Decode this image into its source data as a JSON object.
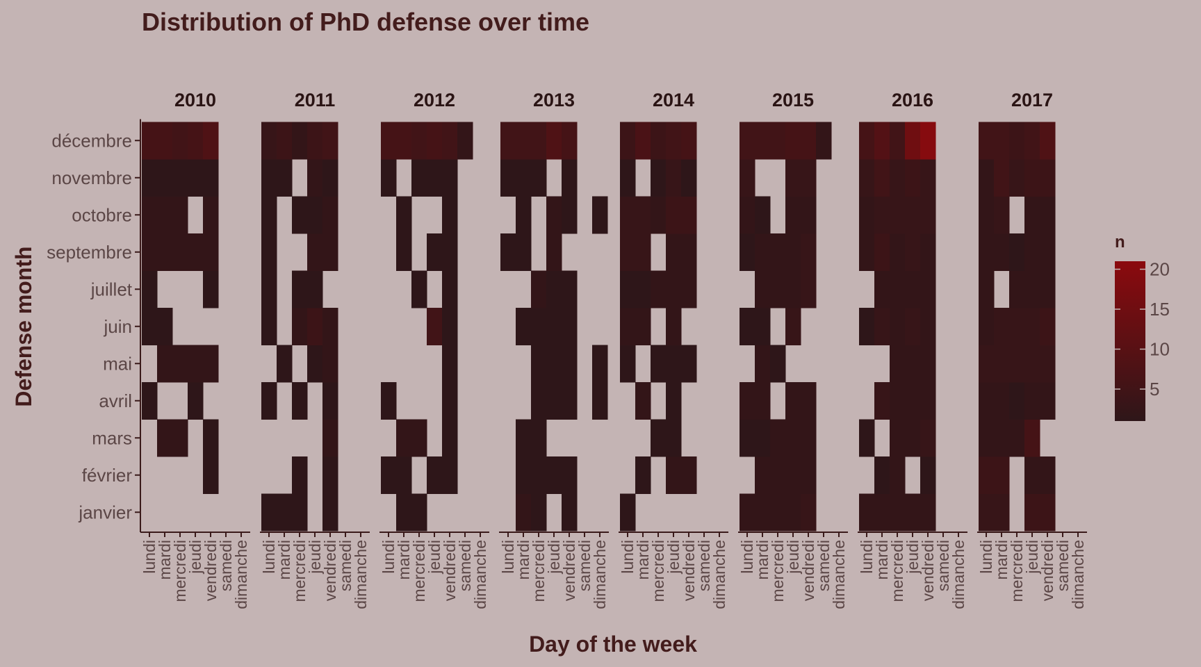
{
  "chart_data": {
    "type": "heatmap",
    "title": "Distribution of PhD defense over time",
    "xlabel": "Day of the week",
    "ylabel": "Defense month",
    "facets": [
      "2010",
      "2011",
      "2012",
      "2013",
      "2014",
      "2015",
      "2016",
      "2017"
    ],
    "days": [
      "lundi",
      "mardi",
      "mercredi",
      "jeudi",
      "vendredi",
      "samedi",
      "dimanche"
    ],
    "months": [
      "janvier",
      "février",
      "mars",
      "avril",
      "mai",
      "juin",
      "juillet",
      "septembre",
      "octobre",
      "novembre",
      "décembre"
    ],
    "legend": {
      "title": "n",
      "ticks": [
        5,
        10,
        15,
        20
      ],
      "min": 1,
      "max": 21,
      "position": "right"
    },
    "colors": {
      "low": "#2e1619",
      "high": "#8b0a0e",
      "background": "#c4b4b4",
      "text": "#431c1c"
    },
    "grid": false,
    "values": {
      "2010": [
        [
          0,
          0,
          0,
          0,
          0,
          0,
          0
        ],
        [
          0,
          0,
          0,
          0,
          1,
          0,
          0
        ],
        [
          0,
          2,
          2,
          0,
          1,
          0,
          0
        ],
        [
          1,
          0,
          0,
          1,
          0,
          0,
          0
        ],
        [
          0,
          2,
          2,
          2,
          2,
          0,
          0
        ],
        [
          1,
          1,
          0,
          0,
          0,
          0,
          0
        ],
        [
          1,
          0,
          0,
          0,
          1,
          0,
          0
        ],
        [
          2,
          2,
          2,
          2,
          2,
          0,
          0
        ],
        [
          2,
          2,
          2,
          0,
          2,
          0,
          0
        ],
        [
          1,
          1,
          1,
          1,
          1,
          0,
          0
        ],
        [
          6,
          6,
          5,
          6,
          8,
          0,
          0
        ]
      ],
      "2011": [
        [
          1,
          1,
          1,
          0,
          1,
          0,
          0
        ],
        [
          0,
          0,
          1,
          0,
          1,
          0,
          0
        ],
        [
          0,
          0,
          0,
          0,
          2,
          0,
          0
        ],
        [
          1,
          0,
          1,
          0,
          1,
          0,
          0
        ],
        [
          0,
          1,
          0,
          1,
          2,
          0,
          0
        ],
        [
          1,
          0,
          2,
          4,
          2,
          0,
          0
        ],
        [
          1,
          0,
          1,
          1,
          0,
          0,
          0
        ],
        [
          1,
          0,
          0,
          2,
          2,
          0,
          0
        ],
        [
          1,
          0,
          1,
          1,
          2,
          0,
          0
        ],
        [
          1,
          1,
          0,
          2,
          1,
          0,
          0
        ],
        [
          3,
          4,
          2,
          4,
          5,
          0,
          0
        ]
      ],
      "2012": [
        [
          0,
          1,
          1,
          0,
          0,
          0,
          0
        ],
        [
          1,
          1,
          0,
          1,
          1,
          0,
          0
        ],
        [
          0,
          2,
          2,
          0,
          1,
          0,
          0
        ],
        [
          1,
          0,
          0,
          0,
          1,
          0,
          0
        ],
        [
          0,
          0,
          0,
          0,
          1,
          0,
          0
        ],
        [
          0,
          0,
          0,
          5,
          1,
          0,
          0
        ],
        [
          0,
          0,
          1,
          0,
          1,
          0,
          0
        ],
        [
          0,
          1,
          0,
          1,
          1,
          0,
          0
        ],
        [
          0,
          1,
          0,
          0,
          1,
          0,
          0
        ],
        [
          1,
          0,
          1,
          1,
          1,
          0,
          0
        ],
        [
          6,
          6,
          5,
          6,
          5,
          2,
          0
        ]
      ],
      "2013": [
        [
          0,
          2,
          1,
          0,
          1,
          0,
          0
        ],
        [
          0,
          1,
          1,
          1,
          1,
          0,
          0
        ],
        [
          0,
          1,
          1,
          0,
          0,
          0,
          0
        ],
        [
          0,
          0,
          1,
          1,
          1,
          0,
          1
        ],
        [
          0,
          0,
          1,
          1,
          1,
          0,
          1
        ],
        [
          0,
          1,
          1,
          1,
          1,
          0,
          0
        ],
        [
          0,
          0,
          2,
          1,
          1,
          0,
          0
        ],
        [
          1,
          1,
          0,
          2,
          0,
          0,
          0
        ],
        [
          0,
          1,
          0,
          2,
          1,
          0,
          1
        ],
        [
          1,
          1,
          1,
          0,
          1,
          0,
          0
        ],
        [
          5,
          5,
          5,
          8,
          6,
          0,
          0
        ]
      ],
      "2014": [
        [
          1,
          0,
          0,
          0,
          0,
          0,
          0
        ],
        [
          0,
          1,
          0,
          2,
          2,
          0,
          0
        ],
        [
          0,
          0,
          1,
          1,
          0,
          0,
          0
        ],
        [
          0,
          2,
          0,
          1,
          0,
          0,
          0
        ],
        [
          1,
          0,
          1,
          1,
          1,
          0,
          0
        ],
        [
          2,
          2,
          0,
          2,
          0,
          0,
          0
        ],
        [
          1,
          1,
          2,
          2,
          2,
          0,
          0
        ],
        [
          3,
          3,
          0,
          2,
          2,
          0,
          0
        ],
        [
          3,
          3,
          2,
          4,
          4,
          0,
          0
        ],
        [
          1,
          0,
          1,
          3,
          1,
          0,
          0
        ],
        [
          4,
          7,
          4,
          5,
          6,
          0,
          0
        ]
      ],
      "2015": [
        [
          2,
          2,
          2,
          2,
          3,
          0,
          0
        ],
        [
          0,
          2,
          2,
          2,
          2,
          0,
          0
        ],
        [
          1,
          1,
          2,
          2,
          2,
          0,
          0
        ],
        [
          2,
          2,
          0,
          2,
          2,
          0,
          0
        ],
        [
          0,
          2,
          1,
          0,
          0,
          0,
          0
        ],
        [
          1,
          1,
          0,
          3,
          0,
          0,
          0
        ],
        [
          0,
          2,
          2,
          2,
          3,
          0,
          0
        ],
        [
          1,
          2,
          2,
          2,
          3,
          0,
          0
        ],
        [
          2,
          1,
          0,
          2,
          2,
          0,
          0
        ],
        [
          3,
          0,
          0,
          3,
          3,
          0,
          0
        ],
        [
          5,
          5,
          5,
          6,
          6,
          2,
          0
        ]
      ],
      "2016": [
        [
          2,
          2,
          2,
          2,
          2,
          0,
          0
        ],
        [
          0,
          1,
          2,
          0,
          1,
          0,
          0
        ],
        [
          1,
          0,
          2,
          2,
          3,
          0,
          0
        ],
        [
          0,
          3,
          2,
          2,
          2,
          0,
          0
        ],
        [
          0,
          0,
          2,
          2,
          2,
          0,
          0
        ],
        [
          1,
          3,
          2,
          3,
          2,
          0,
          0
        ],
        [
          0,
          2,
          2,
          2,
          2,
          0,
          0
        ],
        [
          2,
          4,
          2,
          3,
          2,
          0,
          0
        ],
        [
          2,
          3,
          3,
          3,
          3,
          0,
          0
        ],
        [
          3,
          5,
          3,
          4,
          3,
          0,
          0
        ],
        [
          6,
          9,
          5,
          15,
          20,
          0,
          0
        ]
      ],
      "2017": [
        [
          3,
          3,
          0,
          4,
          4,
          0,
          0
        ],
        [
          4,
          4,
          0,
          2,
          2,
          0,
          0
        ],
        [
          2,
          2,
          2,
          6,
          0,
          0,
          0
        ],
        [
          2,
          2,
          1,
          2,
          2,
          0,
          0
        ],
        [
          3,
          3,
          3,
          3,
          3,
          0,
          0
        ],
        [
          2,
          3,
          3,
          3,
          4,
          0,
          0
        ],
        [
          2,
          0,
          2,
          2,
          2,
          0,
          0
        ],
        [
          2,
          2,
          1,
          2,
          2,
          0,
          0
        ],
        [
          2,
          3,
          0,
          2,
          2,
          0,
          0
        ],
        [
          2,
          5,
          3,
          4,
          4,
          0,
          0
        ],
        [
          5,
          5,
          4,
          5,
          8,
          0,
          0
        ]
      ]
    }
  }
}
